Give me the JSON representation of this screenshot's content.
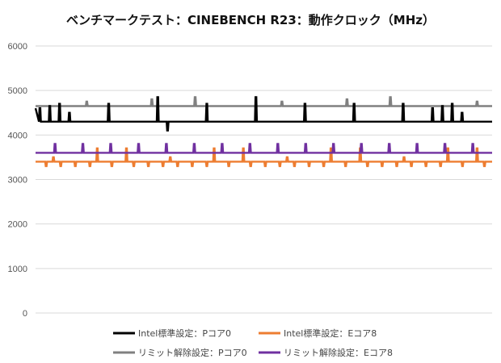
{
  "chart_data": {
    "type": "line",
    "title": "ベンチマークテスト：CINEBENCH R23：動作クロック（MHz）",
    "xlabel": "",
    "ylabel": "",
    "ylim": [
      0,
      6000
    ],
    "yticks": [
      "0",
      "1000",
      "2000",
      "3000",
      "4000",
      "5000",
      "6000"
    ],
    "grid": true,
    "legend_position": "bottom",
    "x_range": [
      0,
      200
    ],
    "series": [
      {
        "name": "Intel標準設定：Pコア0",
        "color": "#000000",
        "base": 4300,
        "values": [
          4600,
          4650,
          4700,
          4500,
          4300,
          4300,
          4300,
          4700,
          4300,
          4300,
          4300,
          4300,
          4850,
          4100,
          4300,
          4300,
          4300,
          4700,
          4300,
          4300,
          4300,
          4300,
          4850,
          4300,
          4300,
          4300,
          4300,
          4700,
          4300,
          4300,
          4300,
          4300,
          4700,
          4300,
          4300,
          4300,
          4300,
          4700,
          4300,
          4300
        ]
      },
      {
        "name": "Intel標準設定：Eコア8",
        "color": "#ED7D31",
        "base": 3400,
        "values": [
          3400,
          3300,
          3500,
          3300,
          3400,
          3300,
          3400,
          3300,
          3700,
          3400,
          3300,
          3400,
          3700,
          3300,
          3400,
          3300
        ]
      },
      {
        "name": "リミット解除設定：Pコア0",
        "color": "#808080",
        "base": 4650,
        "values": [
          4650,
          4650,
          4750,
          4650,
          4650,
          4800,
          4650,
          4850,
          4650
        ]
      },
      {
        "name": "リミット解除設定：Eコア8",
        "color": "#7030A0",
        "base": 3600,
        "values": [
          3600,
          3800,
          3600,
          3800,
          3600,
          3800,
          3600,
          3800
        ]
      }
    ]
  }
}
